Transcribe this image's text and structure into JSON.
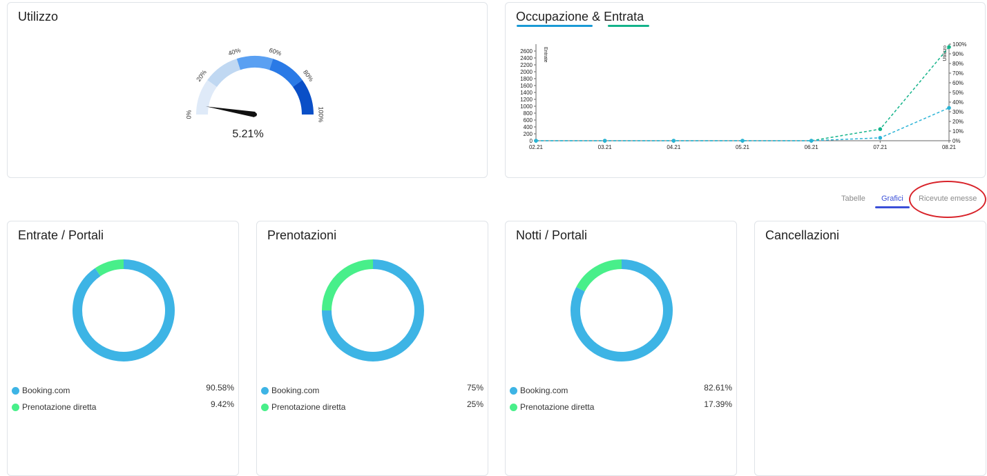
{
  "colors": {
    "booking": "#3db4e5",
    "direct": "#48ef8a",
    "tab_active": "#3a4fd8",
    "occupancy_line": "#1a9ad6",
    "income_line": "#13b38a",
    "gauge": [
      "#dfeaf8",
      "#c0d8f2",
      "#5aa0f2",
      "#2a7ae6",
      "#0a4fc7"
    ],
    "annotation_circle": "#d8232a"
  },
  "gauge_card": {
    "title": "Utilizzo",
    "value_label": "5.21%",
    "value_fraction": 0.0521,
    "tick_labels": [
      "0%",
      "20%",
      "40%",
      "60%",
      "80%",
      "100%"
    ]
  },
  "chart_card": {
    "title": "Occupazione & Entrata",
    "legend_colors": [
      "#1a9ad6",
      "#13b38a"
    ]
  },
  "chart_data": {
    "type": "line",
    "categories": [
      "02.21",
      "03.21",
      "04.21",
      "05.21",
      "06.21",
      "07.21",
      "08.21"
    ],
    "ylabel": "Entrate",
    "y2label": "Utilizzo",
    "ylim": [
      0,
      2800
    ],
    "y_ticks": [
      0,
      200,
      400,
      600,
      800,
      1000,
      1200,
      1400,
      1600,
      1800,
      2000,
      2200,
      2400,
      2600
    ],
    "y2lim": [
      0,
      100
    ],
    "y2_ticks": [
      "0%",
      "10%",
      "20%",
      "30%",
      "40%",
      "50%",
      "60%",
      "70%",
      "80%",
      "90%",
      "100%"
    ],
    "series": [
      {
        "axis": "right",
        "values": [
          0,
          0,
          0,
          0,
          0,
          12,
          97
        ],
        "color": "#13b38a"
      },
      {
        "axis": "right",
        "values": [
          0,
          0,
          0,
          0,
          0,
          3,
          34
        ],
        "color": "#2ab3d6"
      }
    ]
  },
  "tabs": [
    {
      "label": "Tabelle",
      "active": false
    },
    {
      "label": "Grafici",
      "active": true
    },
    {
      "label": "Ricevute emesse",
      "active": false
    }
  ],
  "donut_cards": [
    {
      "title": "Entrate / Portali",
      "items": [
        {
          "label": "Booking.com",
          "pct_label": "90.58%",
          "value": 90.58,
          "color": "#3db4e5"
        },
        {
          "label": "Prenotazione diretta",
          "pct_label": "9.42%",
          "value": 9.42,
          "color": "#48ef8a"
        }
      ]
    },
    {
      "title": "Prenotazioni",
      "items": [
        {
          "label": "Booking.com",
          "pct_label": "75%",
          "value": 75,
          "color": "#3db4e5"
        },
        {
          "label": "Prenotazione diretta",
          "pct_label": "25%",
          "value": 25,
          "color": "#48ef8a"
        }
      ]
    },
    {
      "title": "Notti / Portali",
      "items": [
        {
          "label": "Booking.com",
          "pct_label": "82.61%",
          "value": 82.61,
          "color": "#3db4e5"
        },
        {
          "label": "Prenotazione diretta",
          "pct_label": "17.39%",
          "value": 17.39,
          "color": "#48ef8a"
        }
      ]
    },
    {
      "title": "Cancellazioni",
      "items": []
    }
  ]
}
